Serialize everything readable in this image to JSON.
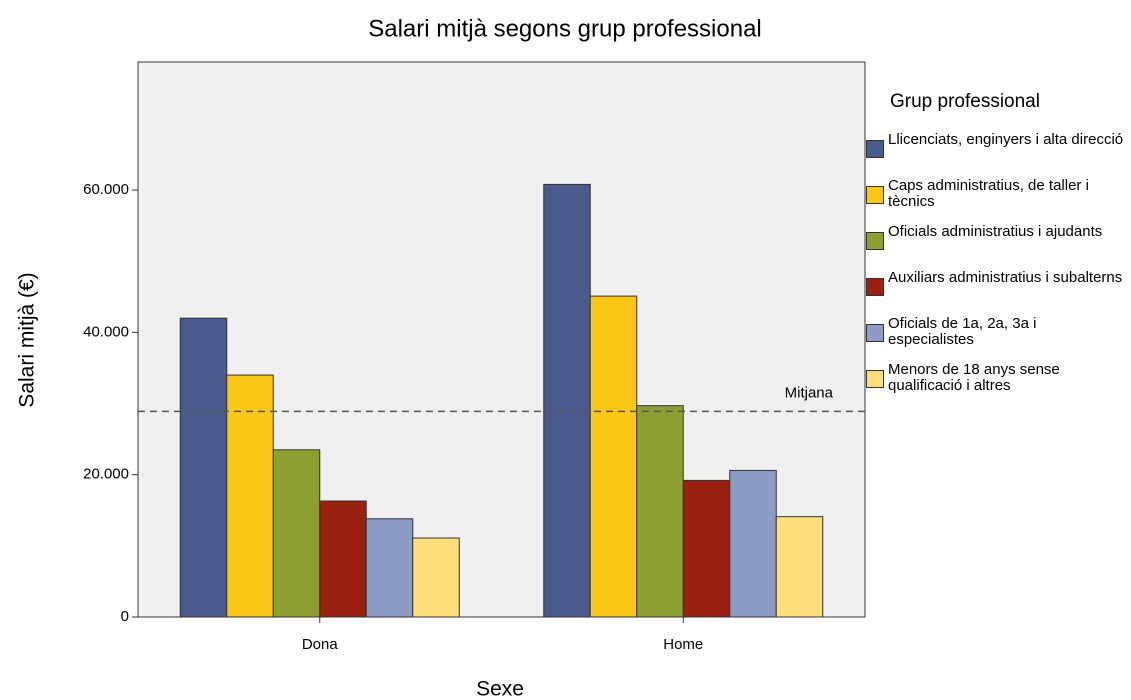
{
  "chart_data": {
    "type": "bar",
    "title": "Salari mitjà segons grup professional",
    "x_label": "Sexe",
    "y_label": "Salari mitjà (€)",
    "legend_title": "Grup professional",
    "legend": "right",
    "categories": [
      "Dona",
      "Home"
    ],
    "series": [
      {
        "name": "Llicenciats, enginyers i alta direcció",
        "color": "#4a5a8c",
        "values": [
          42000,
          60800
        ]
      },
      {
        "name": "Caps administratius, de taller i tècnics",
        "color": "#fcc615",
        "values": [
          34000,
          45100
        ]
      },
      {
        "name": "Oficials administratius i ajudants",
        "color": "#8ca032",
        "values": [
          23500,
          29700
        ]
      },
      {
        "name": "Auxiliars administratius i subalterns",
        "color": "#9a2010",
        "values": [
          16300,
          19200
        ]
      },
      {
        "name": "Oficials de 1a, 2a, 3a i especialistes",
        "color": "#8c9cc4",
        "values": [
          13800,
          20600
        ]
      },
      {
        "name": "Menors de 18 anys sense qualificació i altres",
        "color": "#fcde7a",
        "values": [
          11100,
          14100
        ]
      }
    ],
    "reference_line": {
      "value": 28900,
      "label": "Mitjana"
    },
    "ylim": [
      0,
      78000
    ],
    "yticks": [
      0,
      {
        "value": 20000,
        "label": "20.000"
      },
      {
        "value": 40000,
        "label": "40.000"
      },
      {
        "value": 60000,
        "label": "60.000"
      }
    ]
  }
}
